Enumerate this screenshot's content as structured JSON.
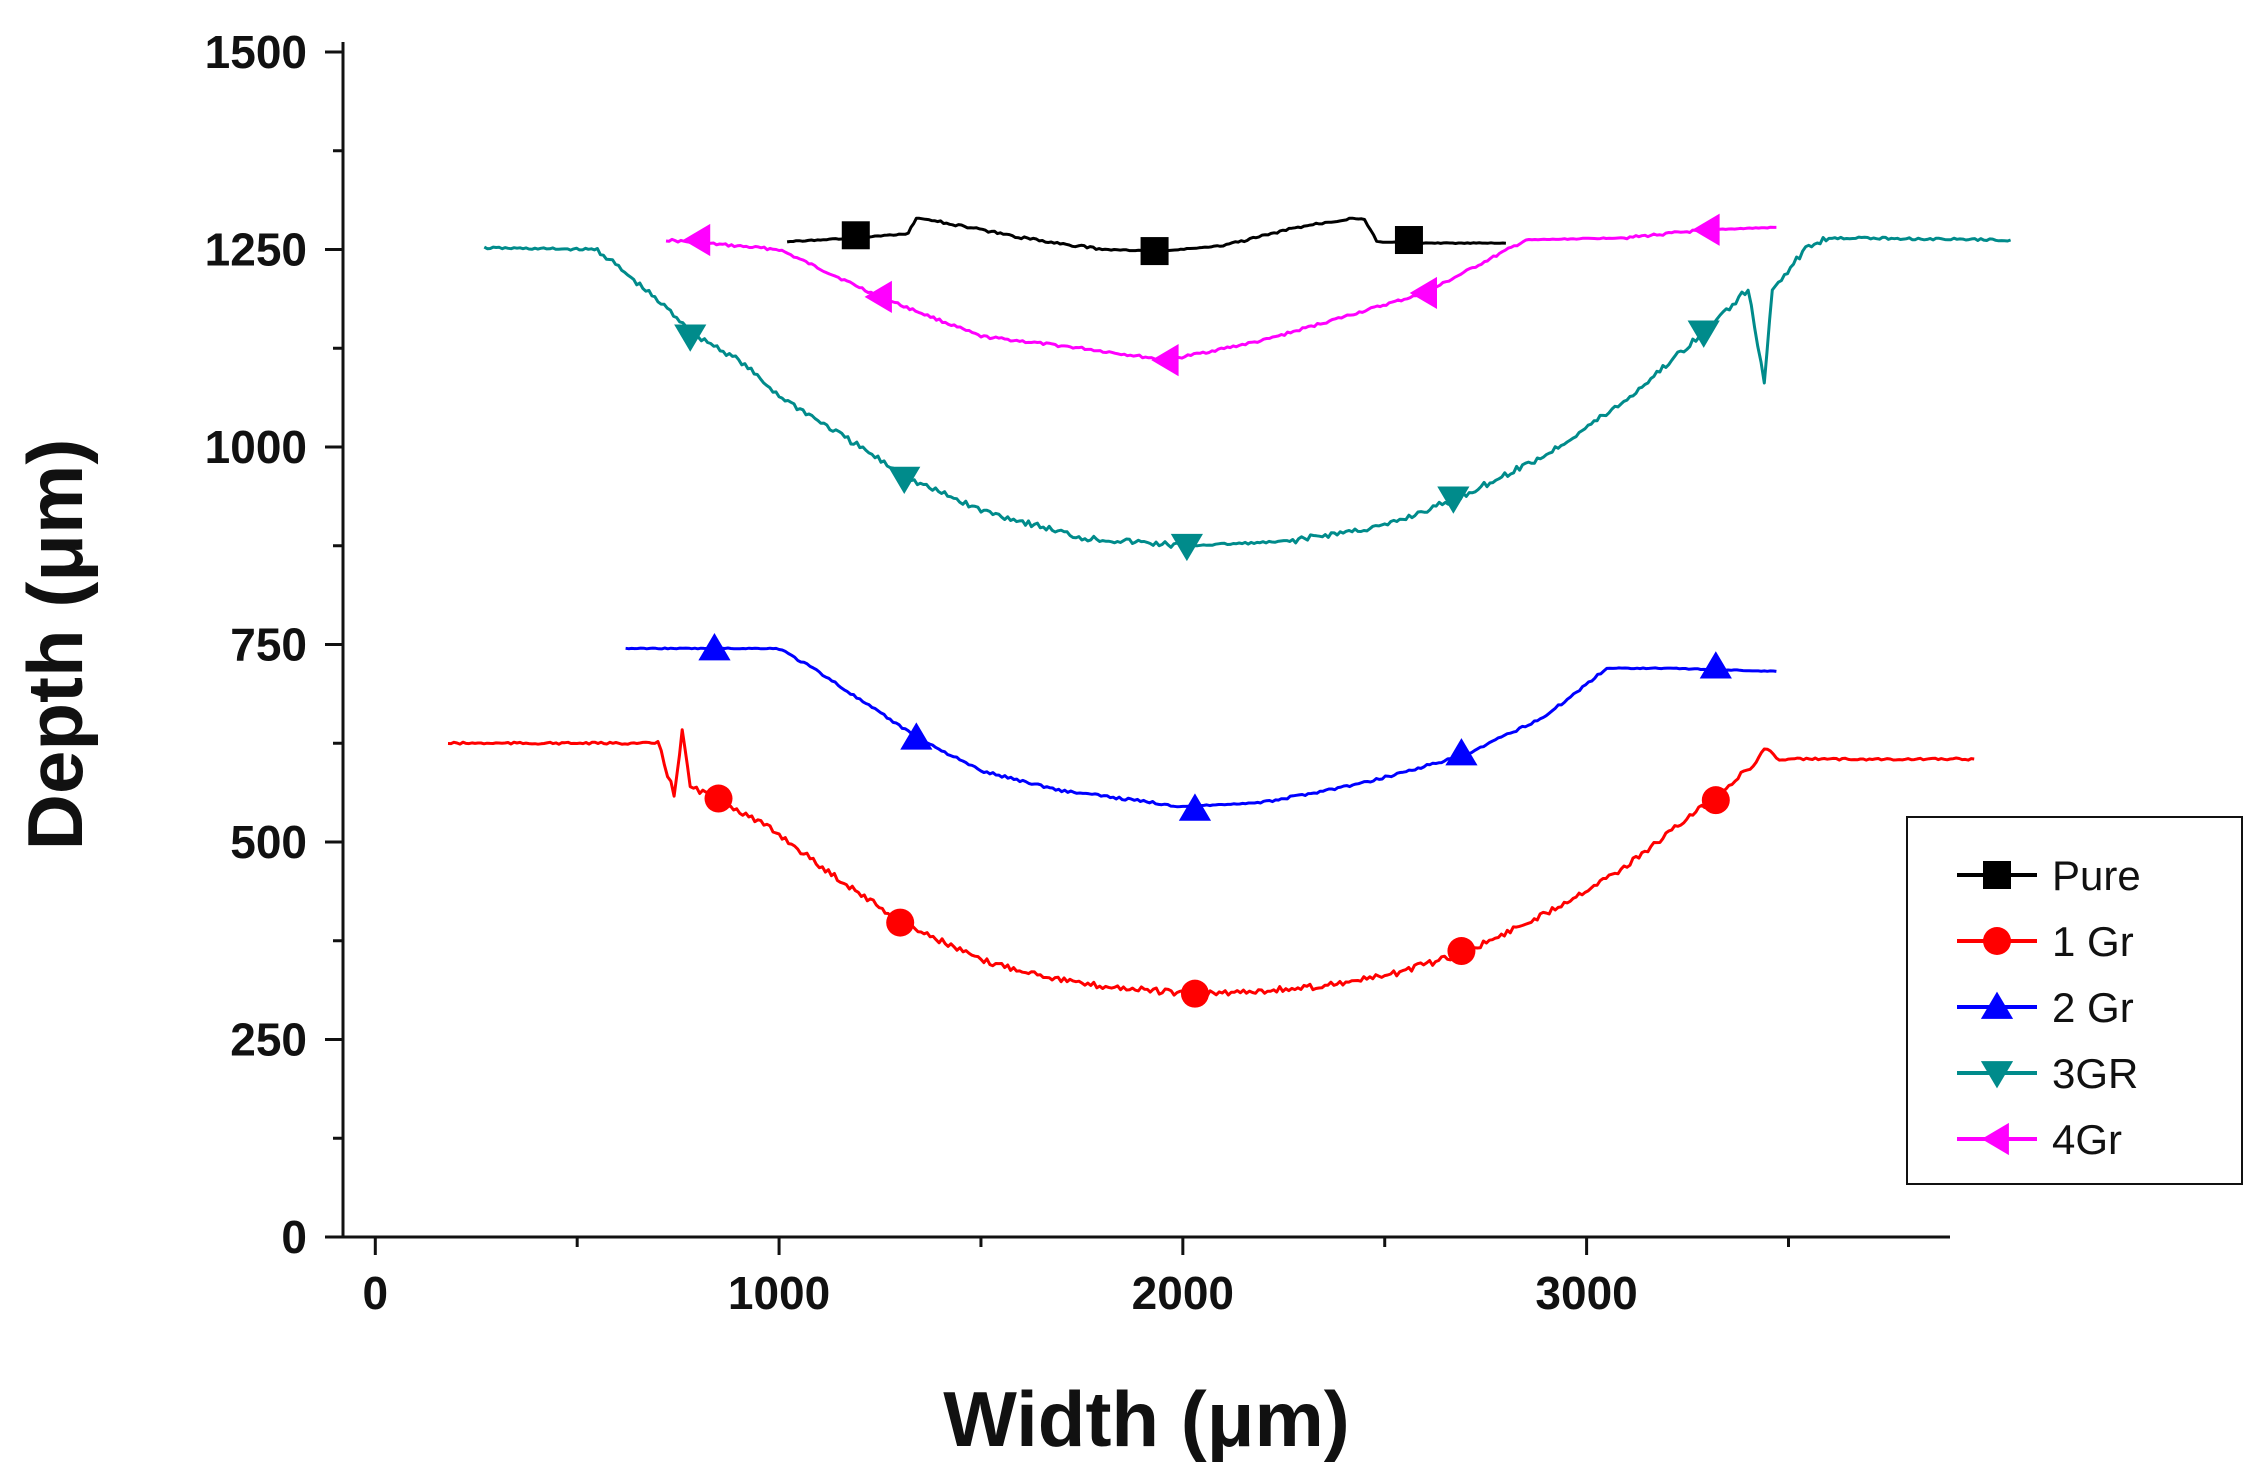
{
  "chart_data": {
    "type": "line",
    "title": "",
    "xlabel": "Width (μm)",
    "ylabel": "Depth (μm)",
    "xlim": [
      -80,
      3900
    ],
    "ylim": [
      0,
      1500
    ],
    "xticks": [
      0,
      1000,
      2000,
      3000
    ],
    "xtick_labels": [
      "0",
      "1000",
      "2000",
      "3000"
    ],
    "yticks": [
      0,
      250,
      500,
      750,
      1000,
      1250,
      1500
    ],
    "ytick_labels": [
      "0",
      "250",
      "500",
      "750",
      "1000",
      "1250",
      "1500"
    ],
    "x_minor_step": 500,
    "y_minor_step": 125,
    "grid": false,
    "legend_position": "right",
    "series": [
      {
        "name": "4Gr",
        "color": "#ff00ff",
        "marker": "triangle-left",
        "x": [
          720,
          1000,
          1250,
          1500,
          1750,
          1960,
          2200,
          2600,
          2850,
          3100,
          3300,
          3470
        ],
        "y": [
          1262,
          1250,
          1190,
          1140,
          1125,
          1110,
          1135,
          1195,
          1262,
          1265,
          1275,
          1278
        ],
        "marker_x": [
          800,
          1250,
          1960,
          2600,
          3300
        ],
        "marker_y": [
          1262,
          1190,
          1110,
          1195,
          1275
        ]
      },
      {
        "name": "3GR",
        "color": "#008b8b",
        "marker": "triangle-down",
        "x": [
          270,
          550,
          700,
          800,
          900,
          1000,
          1200,
          1320,
          1500,
          1750,
          2000,
          2250,
          2500,
          2680,
          2900,
          3100,
          3300,
          3400,
          3440,
          3460,
          3550,
          3600,
          4050
        ],
        "y": [
          1252,
          1250,
          1185,
          1140,
          1110,
          1065,
          1000,
          960,
          920,
          885,
          875,
          880,
          900,
          935,
          990,
          1060,
          1150,
          1200,
          1080,
          1200,
          1255,
          1265,
          1262
        ],
        "marker_x": [
          780,
          1310,
          2010,
          2670,
          3290
        ],
        "marker_y": [
          1140,
          960,
          875,
          935,
          1145
        ]
      },
      {
        "name": "2 Gr",
        "color": "#0000ff",
        "marker": "triangle-up",
        "x": [
          620,
          1000,
          1100,
          1200,
          1350,
          1500,
          1700,
          2000,
          2200,
          2450,
          2700,
          2900,
          3050,
          3200,
          3470
        ],
        "y": [
          745,
          745,
          715,
          680,
          630,
          590,
          565,
          545,
          550,
          575,
          610,
          660,
          720,
          720,
          716
        ],
        "marker_x": [
          840,
          1340,
          2030,
          2690,
          3320
        ],
        "marker_y": [
          745,
          632,
          542,
          612,
          722
        ]
      },
      {
        "name": "1 Gr",
        "color": "#ff0000",
        "marker": "circle",
        "x": [
          180,
          700,
          740,
          760,
          780,
          850,
          1000,
          1100,
          1300,
          1500,
          1750,
          2030,
          2300,
          2500,
          2700,
          2900,
          3100,
          3300,
          3420,
          3440,
          3470,
          3960
        ],
        "y": [
          625,
          625,
          560,
          640,
          570,
          555,
          510,
          470,
          400,
          350,
          320,
          307,
          315,
          330,
          360,
          410,
          470,
          550,
          600,
          620,
          605,
          605
        ],
        "marker_x": [
          850,
          1300,
          2030,
          2690,
          3320
        ],
        "marker_y": [
          555,
          398,
          308,
          362,
          553
        ]
      },
      {
        "name": "Pure",
        "color": "#000000",
        "marker": "square",
        "x": [
          1020,
          1200,
          1320,
          1340,
          1400,
          1600,
          1800,
          1950,
          2100,
          2300,
          2420,
          2450,
          2480,
          2580,
          2800
        ],
        "y": [
          1260,
          1265,
          1270,
          1290,
          1285,
          1265,
          1250,
          1248,
          1255,
          1280,
          1290,
          1288,
          1260,
          1258,
          1258
        ],
        "marker_x": [
          1190,
          1930,
          2560
        ],
        "marker_y": [
          1268,
          1248,
          1262
        ]
      }
    ]
  }
}
